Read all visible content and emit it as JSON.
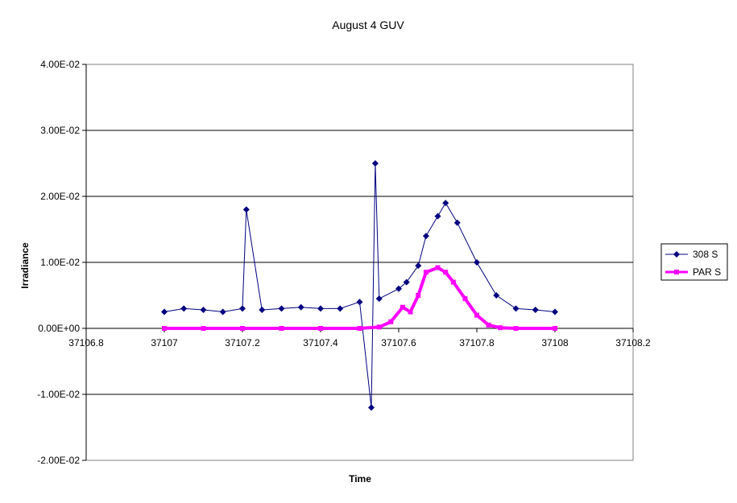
{
  "chart_data": {
    "type": "line",
    "title": "August 4 GUV",
    "xlabel": "Time",
    "ylabel": "Irradiance",
    "xlim": [
      37106.8,
      37108.2
    ],
    "ylim": [
      -0.02,
      0.04
    ],
    "x_ticks": [
      "37106.8",
      "37107",
      "37107.2",
      "37107.4",
      "37107.6",
      "37107.8",
      "37108",
      "37108.2"
    ],
    "y_ticks": [
      "-2.00E-02",
      "-1.00E-02",
      "0.00E+00",
      "1.00E-02",
      "2.00E-02",
      "3.00E-02",
      "4.00E-02"
    ],
    "grid": "horizontal major gridlines",
    "legend_position": "right",
    "series": [
      {
        "name": "308 S",
        "color": "#000080",
        "marker": "diamond",
        "x": [
          37107.0,
          37107.05,
          37107.1,
          37107.15,
          37107.2,
          37107.21,
          37107.25,
          37107.3,
          37107.35,
          37107.4,
          37107.45,
          37107.5,
          37107.53,
          37107.54,
          37107.55,
          37107.6,
          37107.62,
          37107.65,
          37107.67,
          37107.7,
          37107.72,
          37107.75,
          37107.8,
          37107.85,
          37107.9,
          37107.95,
          37108.0
        ],
        "y": [
          0.0025,
          0.003,
          0.0028,
          0.0025,
          0.003,
          0.018,
          0.0028,
          0.003,
          0.0032,
          0.003,
          0.003,
          0.004,
          -0.012,
          0.025,
          0.0045,
          0.006,
          0.007,
          0.0095,
          0.014,
          0.017,
          0.019,
          0.016,
          0.01,
          0.005,
          0.003,
          0.0028,
          0.0025
        ]
      },
      {
        "name": "PAR S",
        "color": "#ff00ff",
        "marker": "square",
        "x": [
          37107.0,
          37107.1,
          37107.2,
          37107.3,
          37107.4,
          37107.5,
          37107.55,
          37107.58,
          37107.61,
          37107.63,
          37107.65,
          37107.67,
          37107.7,
          37107.72,
          37107.74,
          37107.77,
          37107.8,
          37107.83,
          37107.86,
          37107.9,
          37108.0
        ],
        "y": [
          0.0,
          0.0,
          0.0,
          0.0,
          0.0,
          0.0,
          0.0002,
          0.001,
          0.0032,
          0.0025,
          0.005,
          0.0085,
          0.0092,
          0.0085,
          0.007,
          0.0045,
          0.002,
          0.0005,
          0.0001,
          0.0,
          0.0
        ]
      }
    ]
  }
}
